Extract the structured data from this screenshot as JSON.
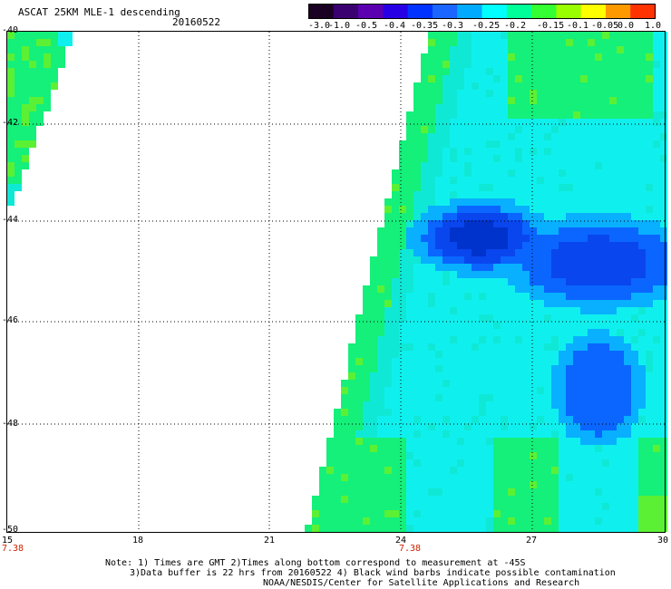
{
  "header": {
    "title": "ASCAT 25KM MLE-1 descending",
    "date": "20160522"
  },
  "colorbar": {
    "labels": [
      "-3.0",
      "-1.0",
      "-0.5",
      "-0.4",
      "-0.35",
      "-0.3",
      "-0.25",
      "-0.2",
      "-0.15",
      "-0.1",
      "-0.05",
      "0.0",
      "1.0"
    ],
    "colors": [
      "#1a0022",
      "#3a0070",
      "#5a00b0",
      "#2800e6",
      "#0033ff",
      "#1a66ff",
      "#00aaff",
      "#00ffff",
      "#00ff99",
      "#33ff33",
      "#99ff00",
      "#ffff00",
      "#ff9900",
      "#ff3300"
    ]
  },
  "map": {
    "lat_labels": [
      "-40",
      "-42",
      "-44",
      "-46",
      "-48",
      "-50"
    ],
    "lon_labels": [
      "15",
      "18",
      "21",
      "24",
      "27",
      "30"
    ],
    "time_labels": [
      "7.38",
      "7.38"
    ],
    "palette": {
      "green": "#14f07a",
      "lightgreen": "#5cf034",
      "yellowgreen": "#b4f428",
      "cyan": "#0ff0ee",
      "aqua": "#10e8d6",
      "skyblue": "#08b0ff",
      "blue": "#0a66ff",
      "deepblue": "#0a46ee",
      "navy": "#0033cc"
    }
  },
  "notes": {
    "line1": "Note: 1) Times are GMT 2)Times along bottom correspond to measurement at -45S",
    "line2": "3)Data buffer is 22 hrs from 20160522 4) Black wind barbs indicate possible contamination",
    "line3": "NOAA/NESDIS/Center for Satellite Applications and Research"
  }
}
